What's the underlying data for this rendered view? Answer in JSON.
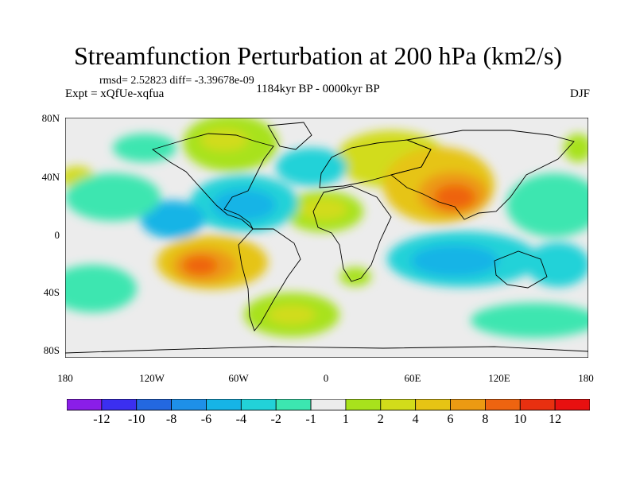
{
  "title": "Streamfunction Perturbation at 200 hPa (km2/s)",
  "stats": "rmsd= 2.52823 diff= -3.39678e-09",
  "experiment": "Expt = xQfUe-xqfua",
  "period": "1184kyr BP - 0000kyr BP",
  "season": "DJF",
  "y_ticks": [
    "80N",
    "40N",
    "0",
    "40S",
    "80S"
  ],
  "x_ticks": [
    "180",
    "120W",
    "60W",
    "0",
    "60E",
    "120E",
    "180"
  ],
  "colorbar": {
    "labels": [
      "-12",
      "-10",
      "-8",
      "-6",
      "-4",
      "-2",
      "-1",
      "1",
      "2",
      "4",
      "6",
      "8",
      "10",
      "12"
    ],
    "colors": [
      "#8a1ee8",
      "#3b2ff0",
      "#2368e0",
      "#1e90e8",
      "#16b4e6",
      "#22d2d8",
      "#3ce6b0",
      "#ececec",
      "#a8e21c",
      "#d2dc1a",
      "#e6c414",
      "#ec9a12",
      "#ee6410",
      "#e83010",
      "#e81010"
    ]
  }
}
